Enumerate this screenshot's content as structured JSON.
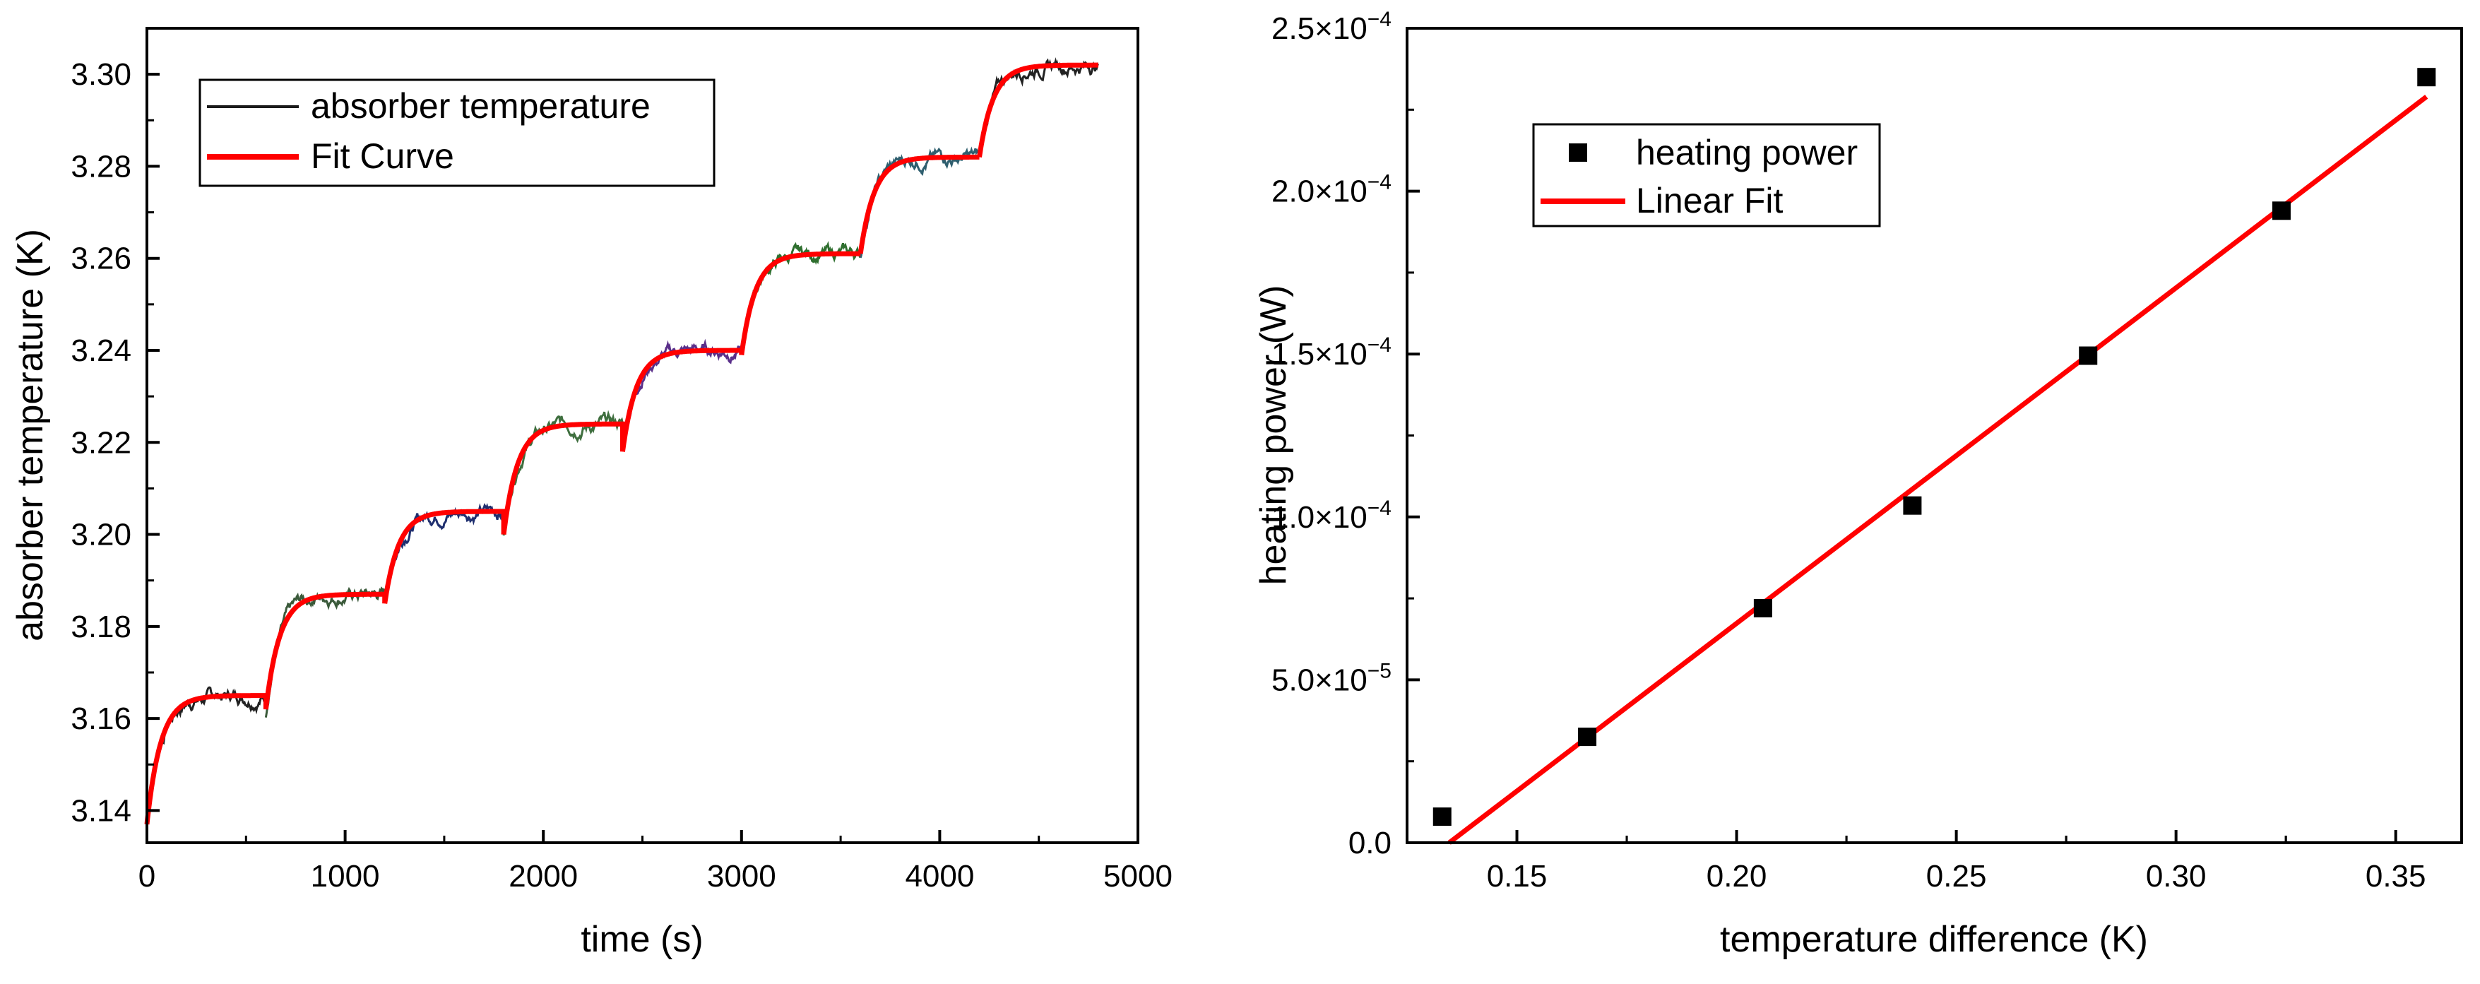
{
  "chart_data": [
    {
      "type": "line",
      "xlabel": "time (s)",
      "ylabel": "absorber temperature (K)",
      "xlim": [
        0,
        5000
      ],
      "ylim": [
        3.133,
        3.31
      ],
      "x_ticks": [
        "0",
        "1000",
        "2000",
        "3000",
        "4000",
        "5000"
      ],
      "y_ticks": [
        "3.14",
        "3.16",
        "3.18",
        "3.20",
        "3.22",
        "3.24",
        "3.26",
        "3.28",
        "3.30"
      ],
      "legend": {
        "position": "top-left",
        "entries": [
          "absorber temperature",
          "Fit Curve"
        ]
      },
      "series": [
        {
          "name": "Fit Curve",
          "color": "#ff0000",
          "model": "stepwise exponential relaxation",
          "step_interval_s": 600,
          "time_constant_s": 70,
          "steps": [
            {
              "t0": 0,
              "y_start": 3.137,
              "y_plateau": 3.165
            },
            {
              "t0": 600,
              "y_start": 3.162,
              "y_plateau": 3.187
            },
            {
              "t0": 1200,
              "y_start": 3.185,
              "y_plateau": 3.205
            },
            {
              "t0": 1800,
              "y_start": 3.2,
              "y_plateau": 3.224
            },
            {
              "t0": 2400,
              "y_start": 3.218,
              "y_plateau": 3.24
            },
            {
              "t0": 3000,
              "y_start": 3.239,
              "y_plateau": 3.261
            },
            {
              "t0": 3600,
              "y_start": 3.261,
              "y_plateau": 3.282
            },
            {
              "t0": 4200,
              "y_start": 3.282,
              "y_plateau": 3.302
            }
          ],
          "t_end": 4800
        },
        {
          "name": "absorber temperature",
          "color": "#1a1a1a",
          "segment_colors": [
            "#222222",
            "#3a5a3a",
            "#1f2f6f",
            "#3f6f3f",
            "#5a2f8a",
            "#2f6f2f",
            "#2f5f6f",
            "#222222"
          ],
          "noise_amplitude_K": 0.0018
        }
      ]
    },
    {
      "type": "scatter",
      "xlabel": "temperature difference (K)",
      "ylabel": "heating power (W)",
      "xlim": [
        0.125,
        0.365
      ],
      "ylim": [
        0,
        0.00025
      ],
      "x_ticks": [
        "0.15",
        "0.20",
        "0.25",
        "0.30",
        "0.35"
      ],
      "y_ticks": [
        {
          "value": 0,
          "mantissa": "0.0",
          "exponent": ""
        },
        {
          "value": 5e-05,
          "mantissa": "5.0×10",
          "exponent": "−5"
        },
        {
          "value": 0.0001,
          "mantissa": "1.0×10",
          "exponent": "−4"
        },
        {
          "value": 0.00015,
          "mantissa": "1.5×10",
          "exponent": "−4"
        },
        {
          "value": 0.0002,
          "mantissa": "2.0×10",
          "exponent": "−4"
        },
        {
          "value": 0.00025,
          "mantissa": "2.5×10",
          "exponent": "−4"
        }
      ],
      "legend": {
        "position": "top-left",
        "entries": [
          "heating power",
          "Linear Fit"
        ]
      },
      "series": [
        {
          "name": "heating power",
          "color": "#000000",
          "marker": "square",
          "x": [
            0.133,
            0.166,
            0.206,
            0.24,
            0.28,
            0.324,
            0.357
          ],
          "y": [
            8e-06,
            3.25e-05,
            7.2e-05,
            0.0001035,
            0.0001495,
            0.000194,
            0.000235
          ]
        },
        {
          "name": "Linear Fit",
          "color": "#ff0000",
          "x": [
            0.1346,
            0.357
          ],
          "y": [
            0.0,
            0.000229
          ]
        }
      ]
    }
  ]
}
